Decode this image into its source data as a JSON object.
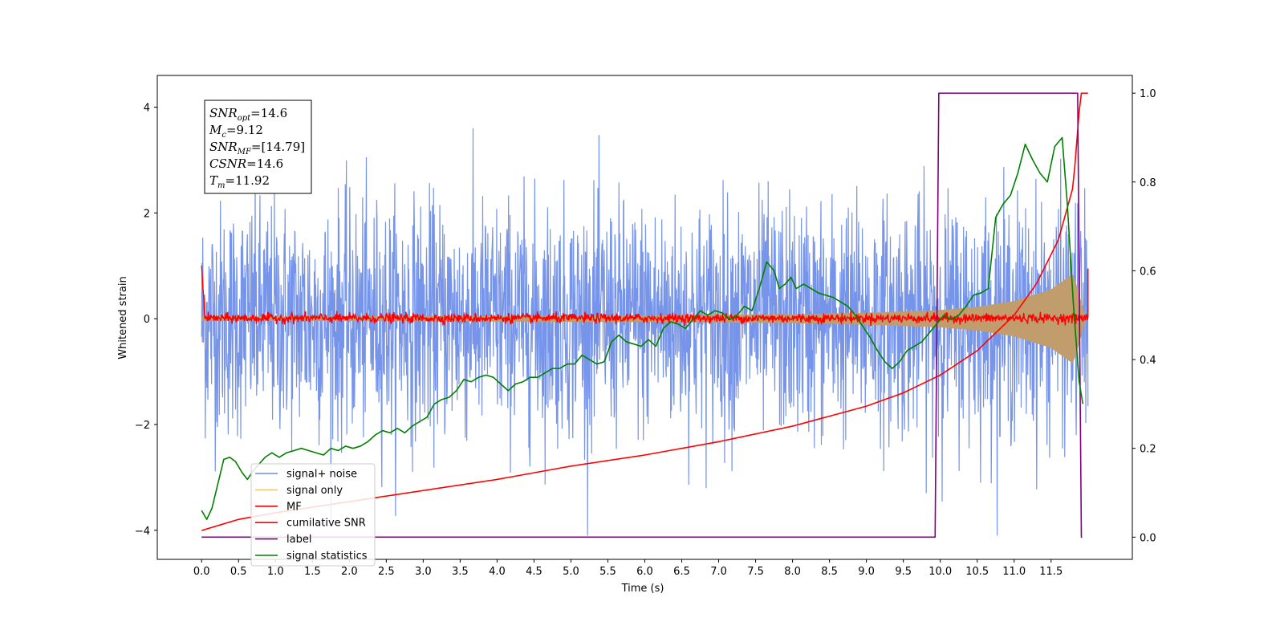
{
  "chart_data": {
    "type": "line",
    "title": "",
    "xlabel": "Time (s)",
    "ylabel": "Whitened strain",
    "y2label": "",
    "xlim": [
      -0.6,
      12.6
    ],
    "ylim": [
      -4.55,
      4.6
    ],
    "y2lim": [
      -0.05,
      1.04
    ],
    "x_ticks": [
      "0.0",
      "0.5",
      "1.0",
      "1.5",
      "2.0",
      "2.5",
      "3.0",
      "3.5",
      "4.0",
      "4.5",
      "5.0",
      "5.5",
      "6.0",
      "6.5",
      "7.0",
      "7.5",
      "8.0",
      "8.5",
      "9.0",
      "9.5",
      "10.0",
      "10.5",
      "11.0",
      "11.5"
    ],
    "y_ticks": [
      "−4",
      "−2",
      "0",
      "2",
      "4"
    ],
    "y2_ticks": [
      "0.0",
      "0.2",
      "0.4",
      "0.6",
      "0.8",
      "1.0"
    ],
    "grid": false,
    "legend_position": "lower-left",
    "annotation": {
      "lines": [
        {
          "base": "SNR",
          "sub": "opt",
          "rest": "=14.6"
        },
        {
          "base": "M",
          "sub": "c",
          "rest": "=9.12"
        },
        {
          "base": "SNR",
          "sub": "MF",
          "rest": "=[14.79]"
        },
        {
          "base": "CSNR",
          "sub": "",
          "rest": "=14.6"
        },
        {
          "base": "T",
          "sub": "m",
          "rest": "=11.92"
        }
      ]
    },
    "series": [
      {
        "name": "signal+ noise",
        "color": "#6f8ee8",
        "axis": "left",
        "description_points": {
          "x_start": 0.0,
          "x_end": 12.0,
          "typical_range": [
            -2.2,
            2.2
          ],
          "max_abs": 4.1
        }
      },
      {
        "name": "signal only",
        "color": "#f5c870",
        "axis": "left",
        "envelope": {
          "x": [
            0.0,
            2.0,
            4.0,
            6.0,
            8.0,
            9.0,
            10.0,
            10.5,
            11.0,
            11.5,
            11.8,
            11.95
          ],
          "amp": [
            0.04,
            0.04,
            0.05,
            0.06,
            0.08,
            0.11,
            0.16,
            0.22,
            0.33,
            0.55,
            0.85,
            0.1
          ]
        }
      },
      {
        "name": "MF",
        "color": "#ff0000",
        "axis": "left",
        "description_points": {
          "x_start": 0.0,
          "x_end": 12.0,
          "typical_range": [
            -0.1,
            0.12
          ],
          "start_value": 1.0,
          "end_value": 0.95
        }
      },
      {
        "name": "cumilative SNR",
        "color": "#ff0000",
        "axis": "right",
        "x": [
          0.0,
          0.5,
          1.0,
          2.0,
          3.0,
          4.0,
          5.0,
          6.0,
          7.0,
          8.0,
          9.0,
          9.5,
          10.0,
          10.5,
          11.0,
          11.3,
          11.6,
          11.8,
          11.9,
          12.0
        ],
        "y": [
          0.015,
          0.04,
          0.055,
          0.08,
          0.105,
          0.13,
          0.16,
          0.185,
          0.215,
          0.25,
          0.295,
          0.325,
          0.365,
          0.42,
          0.5,
          0.57,
          0.67,
          0.79,
          1.0,
          1.0
        ]
      },
      {
        "name": "label",
        "color": "#800080",
        "axis": "right",
        "x": [
          0.0,
          9.93,
          9.98,
          11.86,
          11.91,
          11.92
        ],
        "y": [
          0.0,
          0.0,
          1.0,
          1.0,
          0.0,
          0.0
        ]
      },
      {
        "name": "signal statistics",
        "color": "#008000",
        "axis": "right",
        "x": [
          0.0,
          0.07,
          0.14,
          0.22,
          0.3,
          0.38,
          0.46,
          0.55,
          0.62,
          0.7,
          0.78,
          0.86,
          0.95,
          1.05,
          1.15,
          1.25,
          1.35,
          1.45,
          1.55,
          1.65,
          1.75,
          1.85,
          1.95,
          2.05,
          2.15,
          2.25,
          2.35,
          2.45,
          2.55,
          2.65,
          2.75,
          2.85,
          2.95,
          3.05,
          3.15,
          3.25,
          3.35,
          3.45,
          3.55,
          3.65,
          3.75,
          3.85,
          3.95,
          4.05,
          4.15,
          4.25,
          4.35,
          4.45,
          4.55,
          4.65,
          4.75,
          4.85,
          4.95,
          5.05,
          5.15,
          5.25,
          5.35,
          5.45,
          5.55,
          5.65,
          5.75,
          5.85,
          5.95,
          6.05,
          6.15,
          6.25,
          6.35,
          6.45,
          6.55,
          6.65,
          6.75,
          6.85,
          6.95,
          7.05,
          7.15,
          7.25,
          7.35,
          7.45,
          7.55,
          7.65,
          7.75,
          7.82,
          7.9,
          7.98,
          8.05,
          8.15,
          8.25,
          8.35,
          8.45,
          8.55,
          8.65,
          8.75,
          8.85,
          8.95,
          9.05,
          9.15,
          9.25,
          9.35,
          9.45,
          9.55,
          9.65,
          9.75,
          9.85,
          9.95,
          10.05,
          10.15,
          10.25,
          10.35,
          10.45,
          10.55,
          10.65,
          10.75,
          10.85,
          10.95,
          11.05,
          11.15,
          11.25,
          11.35,
          11.45,
          11.55,
          11.65,
          11.72,
          11.8,
          11.88,
          11.93
        ],
        "y": [
          0.06,
          0.04,
          0.065,
          0.12,
          0.175,
          0.18,
          0.17,
          0.145,
          0.13,
          0.15,
          0.165,
          0.18,
          0.19,
          0.18,
          0.19,
          0.195,
          0.2,
          0.195,
          0.19,
          0.185,
          0.2,
          0.195,
          0.205,
          0.2,
          0.205,
          0.215,
          0.23,
          0.24,
          0.235,
          0.245,
          0.235,
          0.25,
          0.26,
          0.27,
          0.3,
          0.31,
          0.315,
          0.33,
          0.355,
          0.35,
          0.36,
          0.365,
          0.36,
          0.345,
          0.33,
          0.345,
          0.35,
          0.36,
          0.36,
          0.37,
          0.38,
          0.38,
          0.39,
          0.39,
          0.41,
          0.4,
          0.39,
          0.395,
          0.44,
          0.455,
          0.44,
          0.435,
          0.43,
          0.445,
          0.43,
          0.47,
          0.485,
          0.48,
          0.47,
          0.49,
          0.51,
          0.5,
          0.51,
          0.505,
          0.49,
          0.5,
          0.52,
          0.51,
          0.56,
          0.62,
          0.6,
          0.56,
          0.57,
          0.585,
          0.56,
          0.57,
          0.56,
          0.55,
          0.545,
          0.54,
          0.53,
          0.52,
          0.5,
          0.475,
          0.45,
          0.42,
          0.395,
          0.38,
          0.395,
          0.42,
          0.43,
          0.44,
          0.46,
          0.48,
          0.5,
          0.49,
          0.5,
          0.52,
          0.545,
          0.55,
          0.56,
          0.72,
          0.75,
          0.77,
          0.82,
          0.885,
          0.85,
          0.82,
          0.8,
          0.88,
          0.9,
          0.75,
          0.53,
          0.35,
          0.3
        ]
      }
    ]
  }
}
